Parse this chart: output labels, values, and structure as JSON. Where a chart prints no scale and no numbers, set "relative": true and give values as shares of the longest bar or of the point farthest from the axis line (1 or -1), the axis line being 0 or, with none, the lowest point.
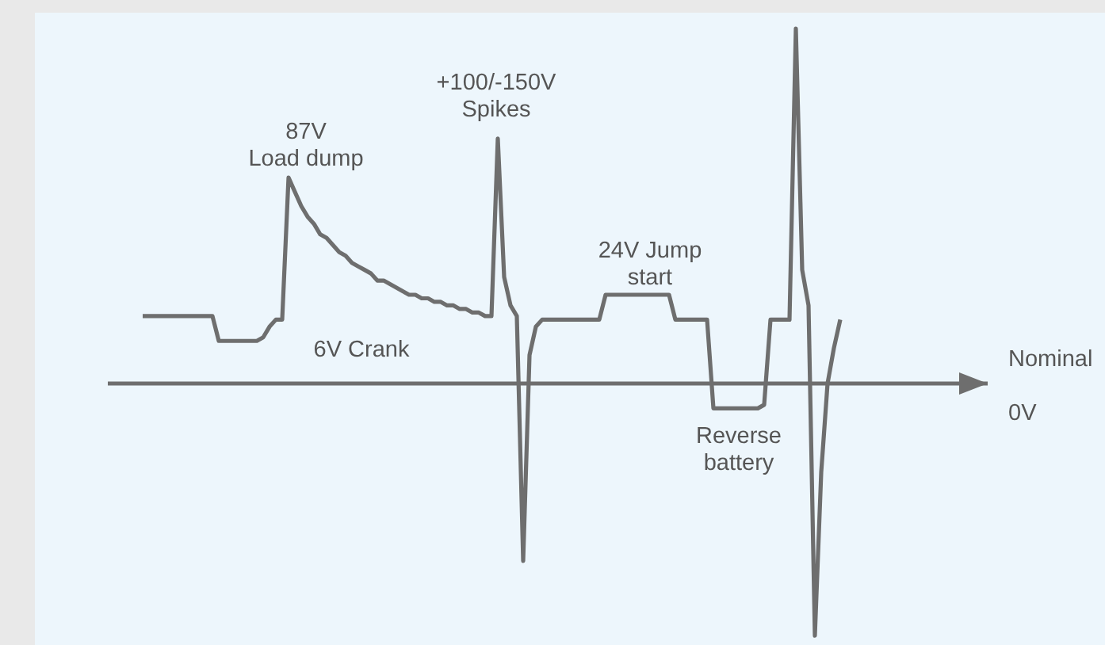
{
  "chart_data": {
    "type": "line",
    "relative": true,
    "line_style": "solid",
    "categories": [
      null,
      null,
      null,
      null,
      null,
      null,
      null,
      null,
      null,
      null,
      null,
      null,
      null,
      null,
      null,
      null,
      null,
      null,
      null,
      null,
      null,
      null,
      null,
      null,
      null,
      null,
      null,
      null,
      null,
      null,
      null,
      null,
      null,
      null,
      null,
      null,
      null,
      null,
      null,
      null,
      null,
      null,
      null,
      null,
      null,
      null,
      null,
      null,
      null,
      null,
      null,
      null,
      null,
      null,
      null,
      null,
      null,
      null,
      null,
      null,
      null,
      null,
      null,
      null,
      null,
      null,
      null,
      null,
      null,
      null,
      null,
      null,
      null,
      null,
      null,
      null,
      null,
      null,
      null,
      null,
      null,
      null,
      null,
      null,
      null,
      null,
      null,
      null,
      null,
      null,
      null,
      null,
      null,
      null,
      null,
      null,
      null,
      null,
      null,
      null,
      null,
      null,
      null,
      null,
      null,
      null,
      null,
      null,
      null,
      null,
      null
    ],
    "series": [
      {
        "color": "#6e6e6e",
        "values": [
          0.19,
          0.19,
          0.19,
          0.19,
          0.19,
          0.19,
          0.19,
          0.19,
          0.19,
          0.19,
          0.19,
          0.19,
          0.12,
          0.12,
          0.12,
          0.12,
          0.12,
          0.12,
          0.12,
          0.13,
          0.16,
          0.18,
          0.18,
          0.58,
          0.54,
          0.5,
          0.47,
          0.45,
          0.42,
          0.41,
          0.39,
          0.37,
          0.36,
          0.34,
          0.33,
          0.32,
          0.31,
          0.29,
          0.29,
          0.28,
          0.27,
          0.26,
          0.25,
          0.25,
          0.24,
          0.24,
          0.23,
          0.23,
          0.22,
          0.22,
          0.21,
          0.21,
          0.2,
          0.2,
          0.19,
          0.19,
          0.69,
          0.3,
          0.22,
          0.19,
          -0.5,
          0.08,
          0.16,
          0.18,
          0.18,
          0.18,
          0.18,
          0.18,
          0.18,
          0.18,
          0.18,
          0.18,
          0.18,
          0.25,
          0.25,
          0.25,
          0.25,
          0.25,
          0.25,
          0.25,
          0.25,
          0.25,
          0.25,
          0.25,
          0.18,
          0.18,
          0.18,
          0.18,
          0.18,
          0.18,
          -0.07,
          -0.07,
          -0.07,
          -0.07,
          -0.07,
          -0.07,
          -0.07,
          -0.07,
          -0.06,
          0.18,
          0.18,
          0.18,
          0.18,
          1,
          0.32,
          0.22,
          -0.71,
          -0.25,
          0,
          0.1,
          0.18
        ]
      }
    ],
    "annotations": [
      "87V\nLoad dump",
      "+100/-150V\nSpikes",
      "24V Jump\nstart",
      "6V Crank",
      "Reverse\nbattery",
      "Nominal",
      "0V"
    ]
  }
}
